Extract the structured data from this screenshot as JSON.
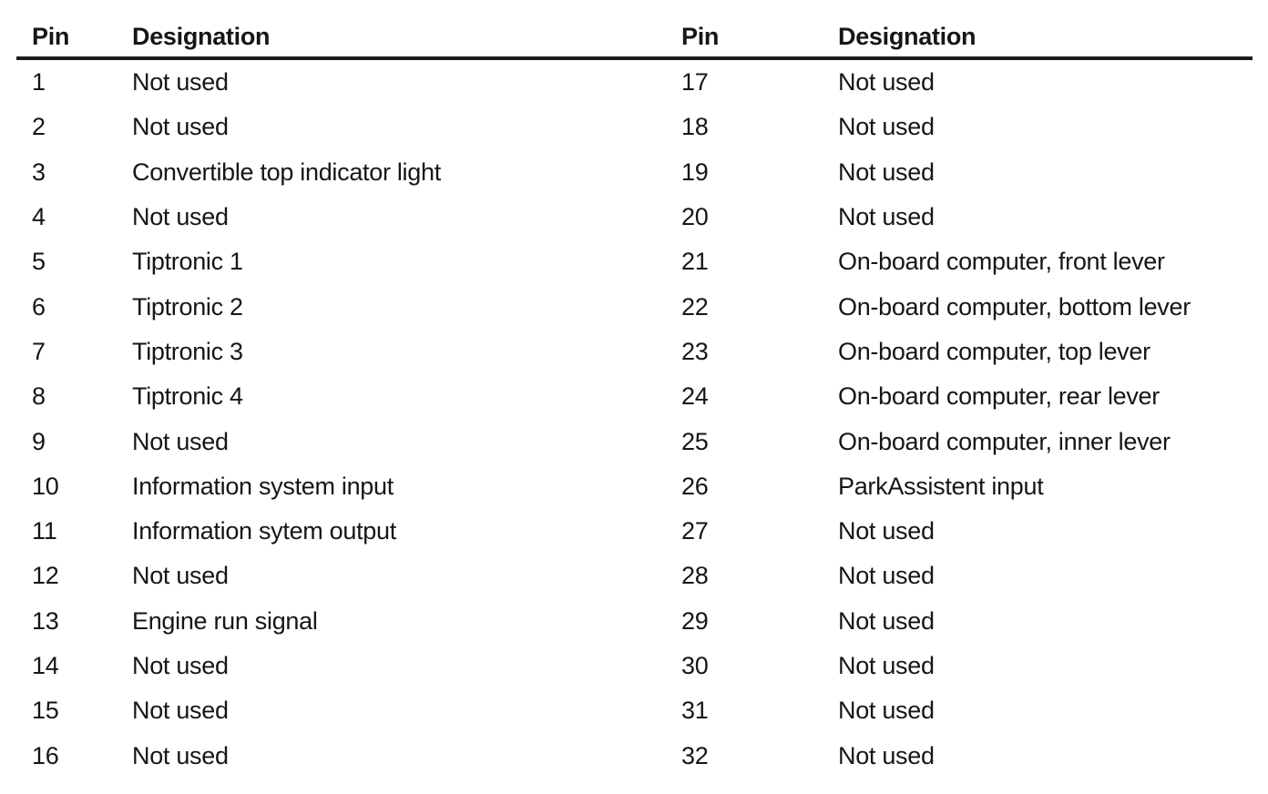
{
  "document": {
    "headers": {
      "pin": "Pin",
      "designation": "Designation"
    },
    "left_rows": [
      {
        "pin": "1",
        "designation": "Not used"
      },
      {
        "pin": "2",
        "designation": "Not used"
      },
      {
        "pin": "3",
        "designation": "Convertible top indicator light"
      },
      {
        "pin": "4",
        "designation": "Not used"
      },
      {
        "pin": "5",
        "designation": "Tiptronic 1"
      },
      {
        "pin": "6",
        "designation": "Tiptronic 2"
      },
      {
        "pin": "7",
        "designation": "Tiptronic 3"
      },
      {
        "pin": "8",
        "designation": "Tiptronic 4"
      },
      {
        "pin": "9",
        "designation": "Not used"
      },
      {
        "pin": "10",
        "designation": "Information system input"
      },
      {
        "pin": "11",
        "designation": "Information sytem output"
      },
      {
        "pin": "12",
        "designation": "Not used"
      },
      {
        "pin": "13",
        "designation": "Engine run signal"
      },
      {
        "pin": "14",
        "designation": "Not used"
      },
      {
        "pin": "15",
        "designation": "Not used"
      },
      {
        "pin": "16",
        "designation": "Not used"
      }
    ],
    "right_rows": [
      {
        "pin": "17",
        "designation": "Not used"
      },
      {
        "pin": "18",
        "designation": "Not used"
      },
      {
        "pin": "19",
        "designation": "Not used"
      },
      {
        "pin": "20",
        "designation": "Not used"
      },
      {
        "pin": "21",
        "designation": "On-board computer, front lever"
      },
      {
        "pin": "22",
        "designation": "On-board computer, bottom lever"
      },
      {
        "pin": "23",
        "designation": "On-board computer, top lever"
      },
      {
        "pin": "24",
        "designation": "On-board computer, rear lever"
      },
      {
        "pin": "25",
        "designation": "On-board computer, inner lever"
      },
      {
        "pin": "26",
        "designation": "ParkAssistent input"
      },
      {
        "pin": "27",
        "designation": "Not used"
      },
      {
        "pin": "28",
        "designation": "Not used"
      },
      {
        "pin": "29",
        "designation": "Not used"
      },
      {
        "pin": "30",
        "designation": "Not used"
      },
      {
        "pin": "31",
        "designation": "Not used"
      },
      {
        "pin": "32",
        "designation": "Not used"
      }
    ],
    "colors": {
      "background": "#ffffff",
      "text": "#161616",
      "rule": "#1c1c1c"
    }
  }
}
